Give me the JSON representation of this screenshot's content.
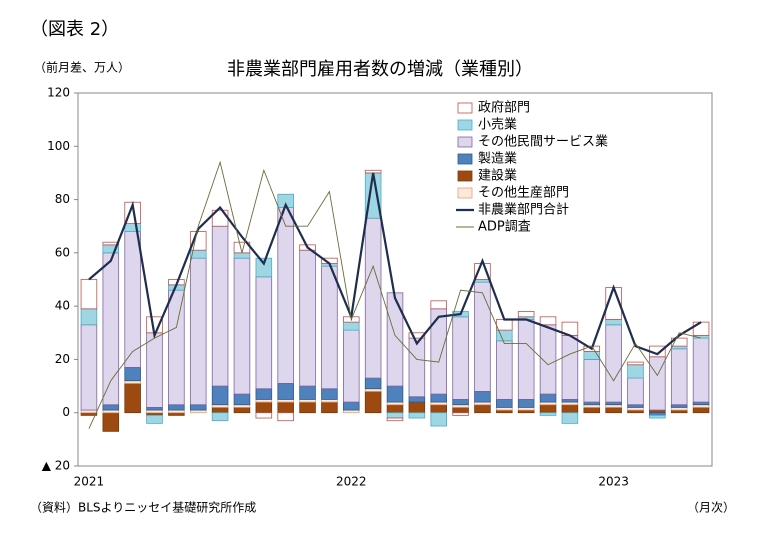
{
  "chart_data": {
    "type": "bar",
    "label": "（図表 2）",
    "title": "非農業部門雇用者数の増減（業種別）",
    "y_unit": "（前月差、万人）",
    "x_unit": "（月次）",
    "source": "（資料）BLSよりニッセイ基礎研究所作成",
    "categories": [
      "2021",
      null,
      null,
      null,
      null,
      null,
      null,
      null,
      null,
      null,
      null,
      null,
      "2022",
      null,
      null,
      null,
      null,
      null,
      null,
      null,
      null,
      null,
      null,
      null,
      "2023",
      null,
      null,
      null,
      null
    ],
    "ylim": [
      -20,
      120
    ],
    "yticks": [
      {
        "value": -20,
        "label": "▲ 20"
      },
      0,
      20,
      40,
      60,
      80,
      100,
      120
    ],
    "legend": "top-right",
    "series": [
      {
        "name": "政府部門",
        "type": "bar",
        "color": "#ffffff",
        "stroke": "#c0504d",
        "values": [
          11,
          1,
          8,
          6,
          2,
          7,
          6,
          4,
          -2,
          -3,
          2,
          2,
          2,
          1,
          -1,
          2,
          3,
          -1,
          6,
          4,
          2,
          3,
          5,
          2,
          12,
          1,
          4,
          3,
          5
        ]
      },
      {
        "name": "小売業",
        "type": "bar",
        "color": "#9fd6e4",
        "stroke": "#4bacc6",
        "values": [
          6,
          3,
          3,
          -3,
          2,
          3,
          -3,
          2,
          7,
          5,
          0,
          1,
          3,
          17,
          -2,
          -2,
          -5,
          2,
          1,
          4,
          1,
          -1,
          -4,
          3,
          2,
          5,
          -1,
          1,
          1
        ]
      },
      {
        "name": "その他民間サービス業",
        "type": "bar",
        "color": "#ddd6ec",
        "stroke": "#8064a2",
        "values": [
          32,
          57,
          51,
          28,
          43,
          55,
          60,
          51,
          42,
          66,
          51,
          46,
          27,
          60,
          35,
          22,
          32,
          31,
          41,
          22,
          30,
          26,
          24,
          16,
          29,
          10,
          20,
          21,
          24
        ]
      },
      {
        "name": "製造業",
        "type": "bar",
        "color": "#4f81bd",
        "stroke": "#2c5a8f",
        "values": [
          0,
          2,
          5,
          1,
          2,
          2,
          7,
          4,
          4,
          6,
          5,
          4,
          3,
          4,
          6,
          2,
          3,
          2,
          4,
          3,
          3,
          3,
          1,
          1,
          1,
          1,
          -1,
          1,
          1
        ]
      },
      {
        "name": "建設業",
        "type": "bar",
        "color": "#9c4a0f",
        "stroke": "#7a3a0b",
        "values": [
          -1,
          -7,
          11,
          -1,
          -1,
          0,
          2,
          2,
          4,
          4,
          4,
          4,
          0,
          8,
          3,
          4,
          3,
          2,
          3,
          1,
          1,
          3,
          3,
          2,
          2,
          1,
          1,
          1,
          2
        ]
      },
      {
        "name": "その他生産部門",
        "type": "bar",
        "color": "#fde9d9",
        "stroke": "#e2a07a",
        "values": [
          1,
          1,
          1,
          1,
          1,
          1,
          1,
          1,
          1,
          1,
          1,
          1,
          1,
          1,
          1,
          0,
          1,
          1,
          1,
          1,
          1,
          1,
          1,
          1,
          1,
          1,
          0,
          1,
          1
        ]
      },
      {
        "name": "非農業部門合計",
        "type": "line",
        "color": "#1f2d4e",
        "width": 2.2,
        "values": [
          50,
          57,
          78,
          29,
          48,
          69,
          77,
          66,
          56,
          78,
          62,
          56,
          36,
          90,
          43,
          26,
          36,
          37,
          57,
          35,
          35,
          32,
          29,
          24,
          47,
          25,
          22,
          29,
          34
        ]
      },
      {
        "name": "ADP調査",
        "type": "line",
        "color": "#6b6b3a",
        "width": 0.9,
        "values": [
          -6,
          12,
          23,
          28,
          32,
          70,
          94,
          60,
          91,
          70,
          70,
          83,
          35,
          55,
          29,
          20,
          19,
          46,
          45,
          26,
          26,
          18,
          22,
          25,
          12,
          26,
          14,
          30,
          28
        ]
      }
    ]
  }
}
